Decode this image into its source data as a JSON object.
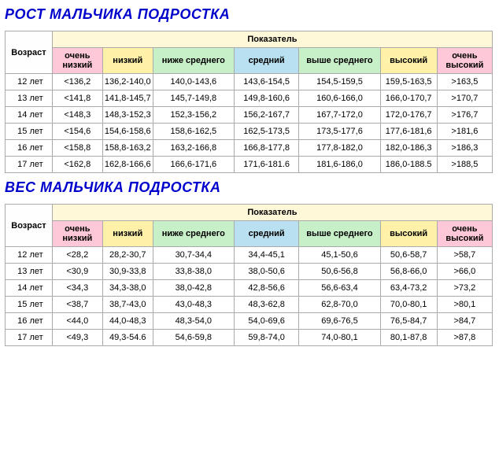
{
  "titles": {
    "height": "РОСТ МАЛЬЧИКА ПОДРОСТКА",
    "weight": "ВЕС МАЛЬЧИКА ПОДРОСТКА"
  },
  "headers": {
    "age": "Возраст",
    "topGroup": "Показатель",
    "cols": [
      "очень низкий",
      "низкий",
      "ниже среднего",
      "средний",
      "выше среднего",
      "высокий",
      "очень высокий"
    ]
  },
  "colors": {
    "title": "#0000cc",
    "topGroup": "#fff8d8",
    "vlow": "#ffc8d8",
    "low": "#fff2a8",
    "below": "#c8f0c8",
    "mid": "#b8e0f0",
    "above": "#c8f0c8",
    "high": "#fff2a8",
    "vhigh": "#ffc8d8",
    "border": "#aaaaaa"
  },
  "height": {
    "rows": [
      {
        "age": "12 лет",
        "v": [
          "<136,2",
          "136,2-140,0",
          "140,0-143,6",
          "143,6-154,5",
          "154,5-159,5",
          "159,5-163,5",
          ">163,5"
        ]
      },
      {
        "age": "13 лет",
        "v": [
          "<141,8",
          "141,8-145,7",
          "145,7-149,8",
          "149,8-160,6",
          "160,6-166,0",
          "166,0-170,7",
          ">170,7"
        ]
      },
      {
        "age": "14 лет",
        "v": [
          "<148,3",
          "148,3-152,3",
          "152,3-156,2",
          "156,2-167,7",
          "167,7-172,0",
          "172,0-176,7",
          ">176,7"
        ]
      },
      {
        "age": "15 лет",
        "v": [
          "<154,6",
          "154,6-158,6",
          "158,6-162,5",
          "162,5-173,5",
          "173,5-177,6",
          "177,6-181,6",
          ">181,6"
        ]
      },
      {
        "age": "16 лет",
        "v": [
          "<158,8",
          "158,8-163,2",
          "163,2-166,8",
          "166,8-177,8",
          "177,8-182,0",
          "182,0-186,3",
          ">186,3"
        ]
      },
      {
        "age": "17 лет",
        "v": [
          "<162,8",
          "162,8-166,6",
          "166,6-171,6",
          "171,6-181.6",
          "181,6-186,0",
          "186,0-188.5",
          ">188,5"
        ]
      }
    ]
  },
  "weight": {
    "rows": [
      {
        "age": "12 лет",
        "v": [
          "<28,2",
          "28,2-30,7",
          "30,7-34,4",
          "34,4-45,1",
          "45,1-50,6",
          "50,6-58,7",
          ">58,7"
        ]
      },
      {
        "age": "13 лет",
        "v": [
          "<30,9",
          "30,9-33,8",
          "33,8-38,0",
          "38,0-50,6",
          "50,6-56,8",
          "56,8-66,0",
          ">66,0"
        ]
      },
      {
        "age": "14 лет",
        "v": [
          "<34,3",
          "34,3-38,0",
          "38,0-42,8",
          "42,8-56,6",
          "56,6-63,4",
          "63,4-73,2",
          ">73,2"
        ]
      },
      {
        "age": "15 лет",
        "v": [
          "<38,7",
          "38,7-43,0",
          "43,0-48,3",
          "48,3-62,8",
          "62,8-70,0",
          "70,0-80,1",
          ">80,1"
        ]
      },
      {
        "age": "16 лет",
        "v": [
          "<44,0",
          "44,0-48,3",
          "48,3-54,0",
          "54,0-69,6",
          "69,6-76,5",
          "76,5-84,7",
          ">84,7"
        ]
      },
      {
        "age": "17 лет",
        "v": [
          "<49,3",
          "49,3-54.6",
          "54,6-59,8",
          "59,8-74,0",
          "74,0-80,1",
          "80,1-87,8",
          ">87,8"
        ]
      }
    ]
  }
}
